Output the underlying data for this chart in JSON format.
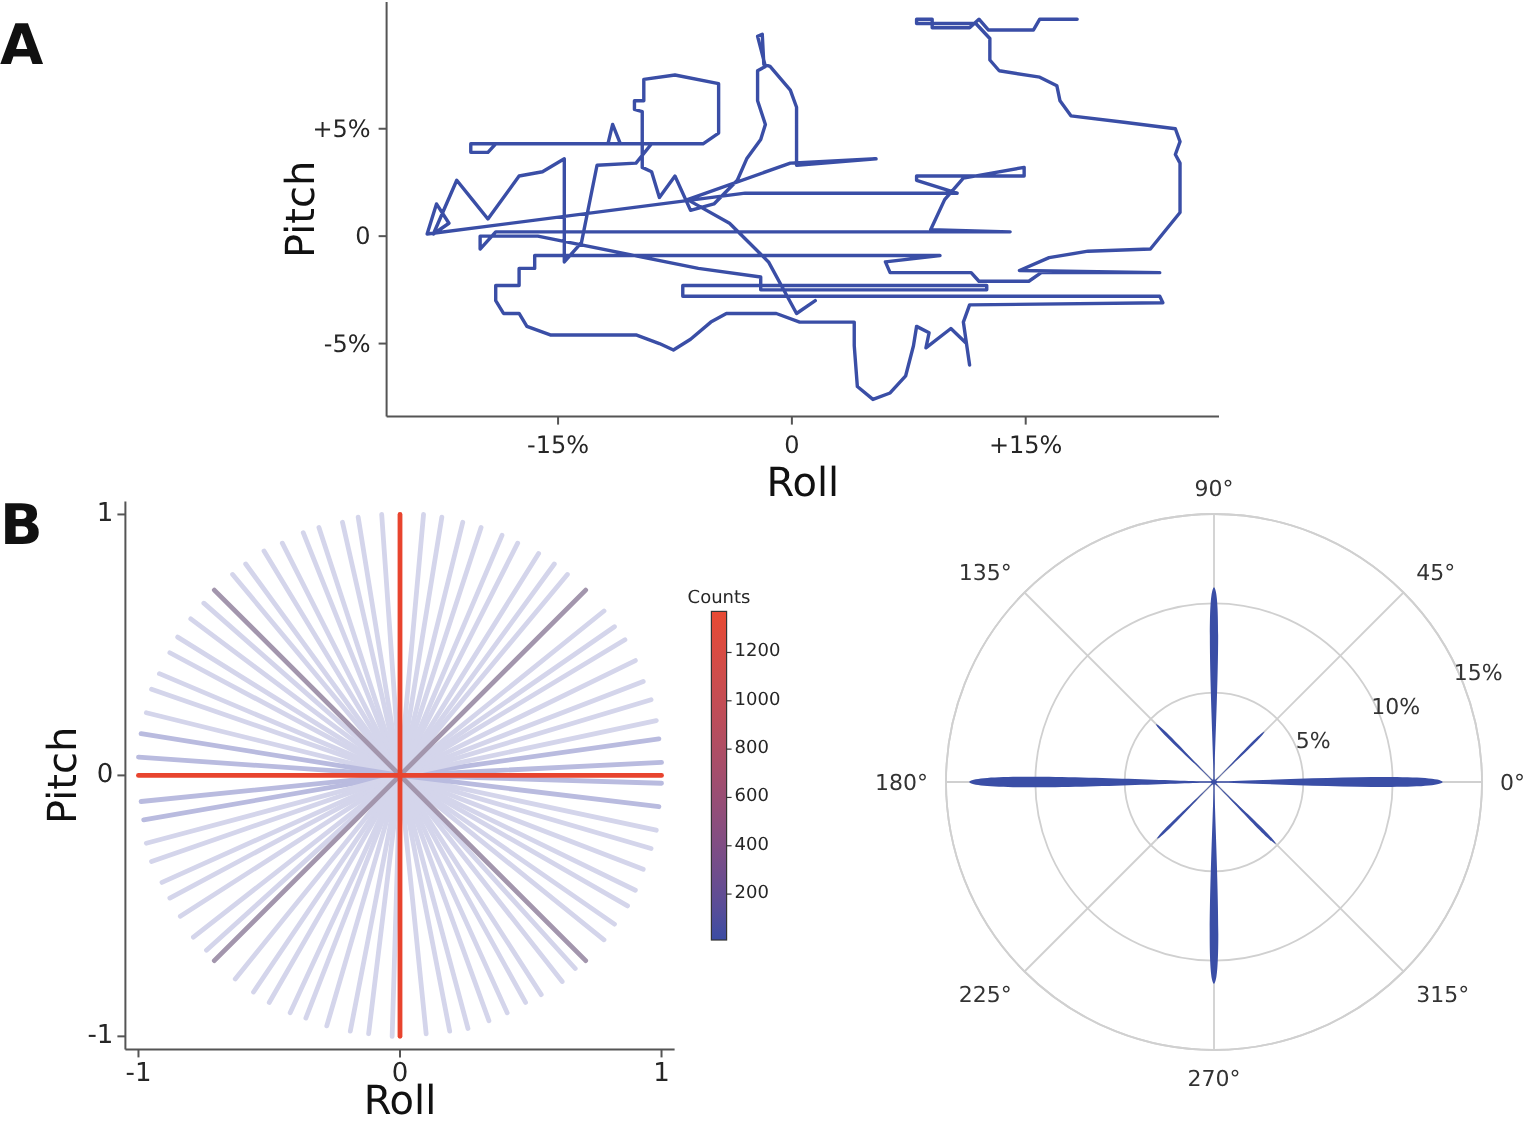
{
  "chart_data": [
    {
      "type": "line",
      "title": "A",
      "xlabel": "Roll",
      "ylabel": "Pitch",
      "xlim": [
        -26,
        27.4
      ],
      "ylim": [
        -8.4,
        10.9
      ],
      "xticks": [
        {
          "value": -15,
          "label": "-15%"
        },
        0,
        {
          "value": 15,
          "label": "+15%"
        }
      ],
      "yticks": [
        {
          "value": -5,
          "label": "-5%"
        },
        0,
        {
          "value": 5,
          "label": "+5%"
        }
      ],
      "series": [
        {
          "color": "#3a4ea6",
          "x": [
            18.3,
            15.9,
            15.5,
            12.6,
            12.0,
            11.4,
            9.0,
            9.0,
            8.0,
            8.0,
            11.8,
            12.7,
            12.7,
            13.3,
            15.9,
            17.0,
            17.2,
            17.9,
            21.3,
            24.6,
            24.9,
            24.6,
            24.9,
            24.9,
            24.0,
            23.0,
            19.0,
            16.5,
            14.6,
            23.6,
            16.0,
            15.2,
            12.0,
            11.5,
            6.3,
            6.0,
            9.5,
            -16.5,
            -16.5,
            -17.5,
            -17.5,
            -19.0,
            -19.0,
            -18.5,
            -17.5,
            -17.0,
            -15.5,
            -10.0,
            -8.5,
            -7.6,
            -6.5,
            -5.2,
            -4.2,
            -1.0,
            0.5,
            4.0,
            4.0,
            4.2,
            5.2,
            6.3,
            7.3,
            7.8,
            8.0,
            8.8,
            8.6,
            10.2,
            11.2,
            11.4,
            11.0,
            11.4,
            23.8,
            23.6,
            -7.0,
            -7.0,
            12.5,
            12.5,
            -2.0,
            -2.0,
            -6.0,
            -16.3,
            -20.0,
            -20.0,
            -19.0,
            14.0,
            8.9,
            9.8,
            11.0,
            14.9,
            14.9,
            8.0,
            8.0,
            10.6,
            -3.0,
            -23.4,
            -22.8,
            -22.0,
            -23.0,
            -21.5,
            -20.5,
            -19.5,
            -17.5,
            -16.0,
            -14.6,
            -14.6,
            -13.5,
            -12.5,
            -10.0,
            -9.0,
            -20.6,
            -20.6,
            -19.5,
            -19.0,
            -11.8,
            -11.5,
            -11.0,
            -5.7,
            -4.7,
            -4.7,
            -7.5,
            -9.5,
            -9.5,
            -10.1,
            -10.1,
            -9.6,
            -9.6,
            -9.0,
            -8.5,
            -7.5,
            -6.5,
            -5.0,
            -3.5,
            -2.9,
            -2.0,
            -1.7,
            -2.2,
            -2.2,
            -1.7,
            -2.2,
            -1.9,
            -1.8,
            -1.4,
            -0.1,
            0.3,
            0.3,
            5.4,
            -0.1,
            -6.7,
            -4.0,
            -1.5,
            0.3,
            1.5
          ],
          "values": [
            10.1,
            10.1,
            9.6,
            9.6,
            10.1,
            9.7,
            9.7,
            10.1,
            10.1,
            9.9,
            9.9,
            9.2,
            8.2,
            7.7,
            7.4,
            7.0,
            6.3,
            5.6,
            5.3,
            5.0,
            4.4,
            3.8,
            3.4,
            1.1,
            0.3,
            -0.6,
            -0.7,
            -1.0,
            -1.6,
            -1.7,
            -1.7,
            -2.1,
            -2.1,
            -1.7,
            -1.7,
            -1.2,
            -0.9,
            -0.9,
            -1.5,
            -1.5,
            -2.3,
            -2.3,
            -3.0,
            -3.6,
            -3.6,
            -4.2,
            -4.6,
            -4.6,
            -5.0,
            -5.3,
            -4.8,
            -4.0,
            -3.6,
            -3.6,
            -4.0,
            -4.0,
            -5.1,
            -7.0,
            -7.6,
            -7.3,
            -6.5,
            -5.1,
            -4.2,
            -4.5,
            -5.2,
            -4.3,
            -5.0,
            -6.0,
            -4.0,
            -3.2,
            -3.1,
            -2.8,
            -2.8,
            -2.3,
            -2.3,
            -2.5,
            -2.5,
            -1.9,
            -1.5,
            0.0,
            0.0,
            -0.6,
            0.2,
            0.2,
            0.3,
            1.7,
            2.7,
            3.2,
            2.8,
            2.8,
            2.6,
            2.0,
            2.0,
            0.1,
            1.5,
            0.6,
            0.1,
            2.6,
            1.7,
            0.8,
            2.8,
            3.0,
            3.6,
            -1.2,
            -0.3,
            3.3,
            3.4,
            4.3,
            4.3,
            3.9,
            3.9,
            4.3,
            4.3,
            5.2,
            4.3,
            4.3,
            4.8,
            7.1,
            7.5,
            7.3,
            6.3,
            6.3,
            5.9,
            5.8,
            3.2,
            3.0,
            1.8,
            2.8,
            1.2,
            1.5,
            2.6,
            3.6,
            4.5,
            5.2,
            6.3,
            7.7,
            7.9,
            9.3,
            9.4,
            8.0,
            7.9,
            6.8,
            6.0,
            3.3,
            3.6,
            3.4,
            1.7,
            0.6,
            -1.2,
            -3.6,
            -3.0
          ]
        }
      ]
    },
    {
      "type": "line",
      "title": "B",
      "xlabel": "Roll",
      "ylabel": "Pitch",
      "xlim": [
        -1.05,
        1.05
      ],
      "ylim": [
        -1.05,
        1.05
      ],
      "xticks": [
        -1,
        0,
        1
      ],
      "yticks": [
        -1,
        0,
        1
      ],
      "clabel": "Counts",
      "clim": [
        10,
        1370
      ],
      "cticks": [
        200,
        400,
        600,
        800,
        1000,
        1200
      ],
      "series": [
        {
          "color": "#b9bbdf",
          "x": [
            -0.99,
            0,
            1
          ],
          "values": [
            -0.1,
            0,
            0.05
          ]
        },
        {
          "color": "#b9bbdf",
          "x": [
            -0.98,
            0,
            0.99
          ],
          "values": [
            -0.17,
            0,
            0.14
          ]
        },
        {
          "color": "#d4d5eb",
          "x": [
            -0.97,
            0,
            0.98
          ],
          "values": [
            -0.26,
            0,
            0.21
          ]
        },
        {
          "color": "#d4d5eb",
          "x": [
            -0.95,
            0,
            0.96
          ],
          "values": [
            -0.33,
            0,
            0.29
          ]
        },
        {
          "color": "#d4d5eb",
          "x": [
            -0.91,
            0,
            0.93
          ],
          "values": [
            -0.41,
            0,
            0.36
          ]
        },
        {
          "color": "#d4d5eb",
          "x": [
            -0.88,
            0,
            0.9
          ],
          "values": [
            -0.47,
            0,
            0.44
          ]
        },
        {
          "color": "#d4d5eb",
          "x": [
            -0.84,
            0,
            0.86
          ],
          "values": [
            -0.54,
            0,
            0.52
          ]
        },
        {
          "color": "#d4d5eb",
          "x": [
            -0.79,
            0,
            0.82
          ],
          "values": [
            -0.62,
            0,
            0.57
          ]
        },
        {
          "color": "#d4d5eb",
          "x": [
            -0.74,
            0,
            0.78
          ],
          "values": [
            -0.67,
            0,
            0.63
          ]
        },
        {
          "color": "#d4d5eb",
          "x": [
            -0.63,
            0,
            0.64
          ],
          "values": [
            -0.78,
            0,
            0.77
          ]
        },
        {
          "color": "#d4d5eb",
          "x": [
            -0.56,
            0,
            0.59
          ],
          "values": [
            -0.83,
            0,
            0.81
          ]
        },
        {
          "color": "#d4d5eb",
          "x": [
            -0.5,
            0,
            0.53
          ],
          "values": [
            -0.87,
            0,
            0.85
          ]
        },
        {
          "color": "#d4d5eb",
          "x": [
            -0.42,
            0,
            0.45
          ],
          "values": [
            -0.91,
            0,
            0.89
          ]
        },
        {
          "color": "#d4d5eb",
          "x": [
            -0.36,
            0,
            0.39
          ],
          "values": [
            -0.93,
            0,
            0.92
          ]
        },
        {
          "color": "#d4d5eb",
          "x": [
            -0.28,
            0,
            0.31
          ],
          "values": [
            -0.96,
            0,
            0.95
          ]
        },
        {
          "color": "#d4d5eb",
          "x": [
            -0.19,
            0,
            0.24
          ],
          "values": [
            -0.98,
            0,
            0.97
          ]
        },
        {
          "color": "#d4d5eb",
          "x": [
            -0.12,
            0,
            0.16
          ],
          "values": [
            -0.99,
            0,
            0.99
          ]
        },
        {
          "color": "#d4d5eb",
          "x": [
            -0.03,
            0,
            0.09
          ],
          "values": [
            -1,
            0,
            1
          ]
        },
        {
          "color": "#d4d5eb",
          "x": [
            -0.07,
            0,
            0.1
          ],
          "values": [
            1,
            0,
            -0.99
          ]
        },
        {
          "color": "#d4d5eb",
          "x": [
            -0.16,
            0,
            0.19
          ],
          "values": [
            0.99,
            0,
            -0.98
          ]
        },
        {
          "color": "#d4d5eb",
          "x": [
            -0.22,
            0,
            0.26
          ],
          "values": [
            0.97,
            0,
            -0.97
          ]
        },
        {
          "color": "#d4d5eb",
          "x": [
            -0.31,
            0,
            0.34
          ],
          "values": [
            0.95,
            0,
            -0.94
          ]
        },
        {
          "color": "#d4d5eb",
          "x": [
            -0.37,
            0,
            0.41
          ],
          "values": [
            0.93,
            0,
            -0.91
          ]
        },
        {
          "color": "#d4d5eb",
          "x": [
            -0.45,
            0,
            0.48
          ],
          "values": [
            0.89,
            0,
            -0.87
          ]
        },
        {
          "color": "#d4d5eb",
          "x": [
            -0.52,
            0,
            0.54
          ],
          "values": [
            0.86,
            0,
            -0.84
          ]
        },
        {
          "color": "#d4d5eb",
          "x": [
            -0.59,
            0,
            0.62
          ],
          "values": [
            0.81,
            0,
            -0.79
          ]
        },
        {
          "color": "#d4d5eb",
          "x": [
            -0.64,
            0,
            0.67
          ],
          "values": [
            0.77,
            0,
            -0.74
          ]
        },
        {
          "color": "#d4d5eb",
          "x": [
            -0.75,
            0,
            0.78
          ],
          "values": [
            0.66,
            0,
            -0.63
          ]
        },
        {
          "color": "#d4d5eb",
          "x": [
            -0.8,
            0,
            0.82
          ],
          "values": [
            0.6,
            0,
            -0.57
          ]
        },
        {
          "color": "#d4d5eb",
          "x": [
            -0.85,
            0,
            0.87
          ],
          "values": [
            0.53,
            0,
            -0.5
          ]
        },
        {
          "color": "#d4d5eb",
          "x": [
            -0.88,
            0,
            0.9
          ],
          "values": [
            0.47,
            0,
            -0.44
          ]
        },
        {
          "color": "#d4d5eb",
          "x": [
            -0.92,
            0,
            0.93
          ],
          "values": [
            0.39,
            0,
            -0.36
          ]
        },
        {
          "color": "#d4d5eb",
          "x": [
            -0.95,
            0,
            0.96
          ],
          "values": [
            0.33,
            0,
            -0.28
          ]
        },
        {
          "color": "#d4d5eb",
          "x": [
            -0.97,
            0,
            0.98
          ],
          "values": [
            0.24,
            0,
            -0.21
          ]
        },
        {
          "color": "#b9bbdf",
          "x": [
            -0.99,
            0,
            0.99
          ],
          "values": [
            0.16,
            0,
            -0.12
          ]
        },
        {
          "color": "#b9bbdf",
          "x": [
            -1,
            0,
            1
          ],
          "values": [
            0.07,
            0,
            -0.03
          ]
        },
        {
          "color": "#a396ad",
          "x": [
            -0.71,
            0.71
          ],
          "values": [
            -0.71,
            0.71
          ]
        },
        {
          "color": "#a396ad",
          "x": [
            -0.71,
            0.71
          ],
          "values": [
            0.71,
            -0.71
          ]
        },
        {
          "color": "#e8442e",
          "x": [
            -1,
            1
          ],
          "values": [
            0,
            0
          ]
        },
        {
          "color": "#e8442e",
          "x": [
            0,
            0
          ],
          "values": [
            -1,
            1
          ]
        }
      ]
    },
    {
      "type": "radar",
      "categories": [
        "90°",
        "45°",
        "0°",
        "315°",
        "270°",
        "225°",
        "180°",
        "135°"
      ],
      "ylim": [
        0,
        15
      ],
      "yticks": [
        {
          "value": 5,
          "label": "5%"
        },
        {
          "value": 10,
          "label": "10%"
        },
        {
          "value": 15,
          "label": "15%"
        }
      ],
      "grid": true,
      "series": [
        {
          "type": "bar",
          "color": "#3a4ea6",
          "values": [
            10.9,
            4.0,
            12.8,
            4.9,
            11.3,
            4.5,
            13.7,
            4.6
          ]
        }
      ]
    }
  ]
}
